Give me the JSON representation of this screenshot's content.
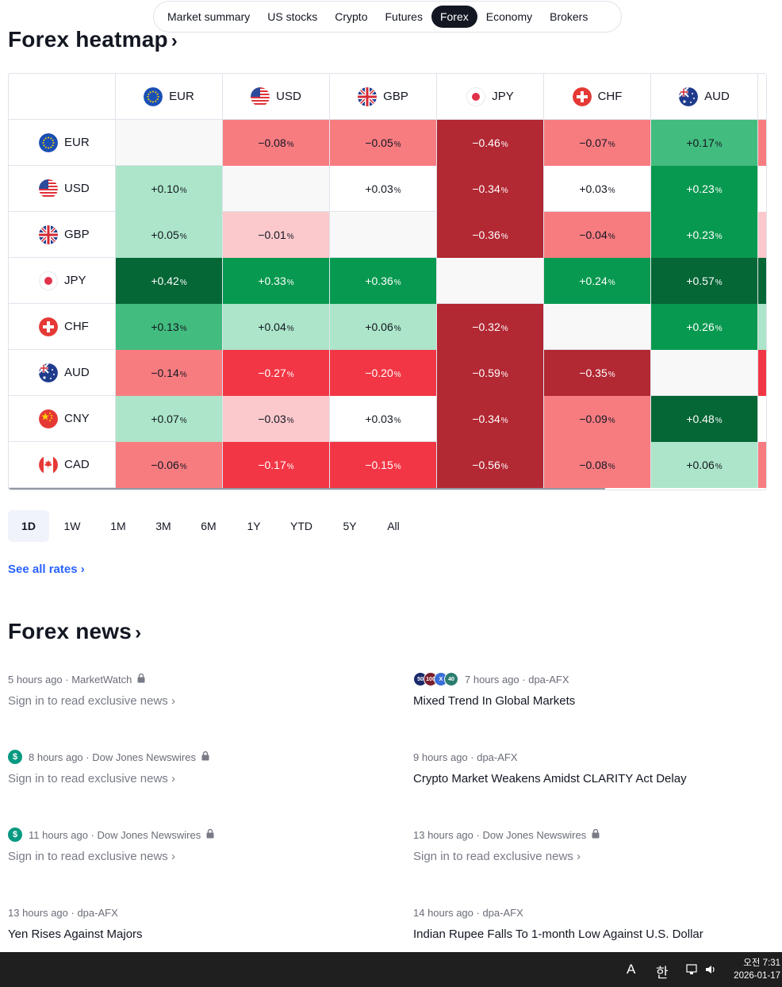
{
  "nav": {
    "items": [
      "Market summary",
      "US stocks",
      "Crypto",
      "Futures",
      "Forex",
      "Economy",
      "Brokers"
    ],
    "active": "Forex"
  },
  "heatmap": {
    "title": "Forex heatmap",
    "chevron": "›",
    "columns": [
      "EUR",
      "USD",
      "GBP",
      "JPY",
      "CHF",
      "AUD"
    ],
    "rows": [
      {
        "label": "EUR",
        "cells": [
          "",
          "−0.08",
          "−0.05",
          "−0.46",
          "−0.07",
          "+0.17"
        ]
      },
      {
        "label": "USD",
        "cells": [
          "+0.10",
          "",
          "+0.03",
          "−0.34",
          "+0.03",
          "+0.23"
        ]
      },
      {
        "label": "GBP",
        "cells": [
          "+0.05",
          "−0.01",
          "",
          "−0.36",
          "−0.04",
          "+0.23"
        ]
      },
      {
        "label": "JPY",
        "cells": [
          "+0.42",
          "+0.33",
          "+0.36",
          "",
          "+0.24",
          "+0.57"
        ]
      },
      {
        "label": "CHF",
        "cells": [
          "+0.13",
          "+0.04",
          "+0.06",
          "−0.32",
          "",
          "+0.26"
        ]
      },
      {
        "label": "AUD",
        "cells": [
          "−0.14",
          "−0.27",
          "−0.20",
          "−0.59",
          "−0.35",
          ""
        ]
      },
      {
        "label": "CNY",
        "cells": [
          "+0.07",
          "−0.03",
          "+0.03",
          "−0.34",
          "−0.09",
          "+0.48"
        ]
      },
      {
        "label": "CAD",
        "cells": [
          "−0.06",
          "−0.17",
          "−0.15",
          "−0.56",
          "−0.08",
          "+0.06"
        ]
      }
    ],
    "percent_sign": "%",
    "colors": {
      "neg_light": "#fbc8cc",
      "neg_mid": "#f77c80",
      "neg_strong": "#f23645",
      "neg_dark": "#b22833",
      "pos_light": "#ace5c9",
      "pos_mid": "#42bd7f",
      "pos_strong": "#089950",
      "pos_dark": "#056636",
      "neutral": "#ffffff",
      "empty": "#f8f8f8"
    }
  },
  "periods": {
    "items": [
      "1D",
      "1W",
      "1M",
      "3M",
      "6M",
      "1Y",
      "YTD",
      "5Y",
      "All"
    ],
    "active": "1D"
  },
  "see_all": "See all rates ›",
  "news": {
    "title": "Forex news",
    "chevron": "›",
    "items": [
      {
        "meta": "5 hours ago · MarketWatch",
        "title": "Sign in to read exclusive news ›",
        "locked": true,
        "badge": "none"
      },
      {
        "meta": "7 hours ago · dpa-AFX",
        "title": "Mixed Trend In Global Markets",
        "locked": false,
        "badge": "multi",
        "badges": [
          "50",
          "100",
          "X",
          "40"
        ]
      },
      {
        "meta": "8 hours ago · Dow Jones Newswires",
        "title": "Sign in to read exclusive news ›",
        "locked": true,
        "badge": "dollar",
        "badge_text": "$"
      },
      {
        "meta": "9 hours ago · dpa-AFX",
        "title": "Crypto Market Weakens Amidst CLARITY Act Delay",
        "locked": false,
        "badge": "none"
      },
      {
        "meta": "11 hours ago · Dow Jones Newswires",
        "title": "Sign in to read exclusive news ›",
        "locked": true,
        "badge": "dollar",
        "badge_text": "$"
      },
      {
        "meta": "13 hours ago · Dow Jones Newswires",
        "title": "Sign in to read exclusive news ›",
        "locked": true,
        "badge": "none"
      },
      {
        "meta": "13 hours ago · dpa-AFX",
        "title": "Yen Rises Against Majors",
        "locked": false,
        "badge": "none"
      },
      {
        "meta": "14 hours ago · dpa-AFX",
        "title": "Indian Rupee Falls To 1-month Low Against U.S. Dollar",
        "locked": false,
        "badge": "none"
      }
    ]
  },
  "taskbar": {
    "ime_mode": "A",
    "ime_lang": "한",
    "time": "오전 7:31",
    "date": "2026-01-17"
  }
}
